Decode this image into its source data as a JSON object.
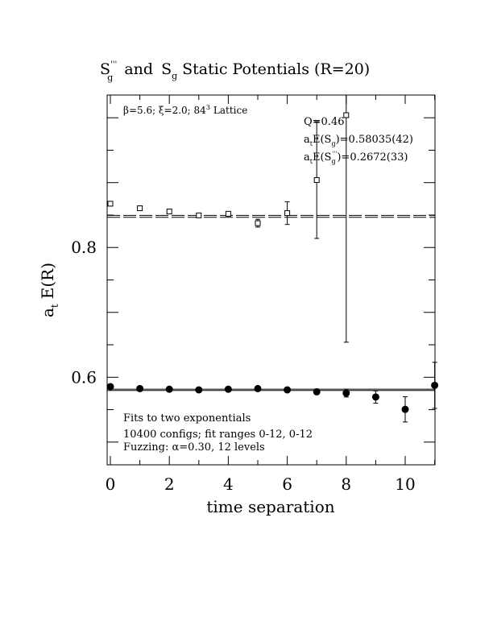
{
  "chart_data": {
    "type": "scatter",
    "title": {
      "s1_base": "S",
      "s1_sub": "g",
      "s1_sup": "'''",
      "and": "and",
      "s2_base": "S",
      "s2_sub": "g",
      "rest": "Static Potentials (R=20)"
    },
    "xlabel": "time separation",
    "ylabel": {
      "base": "a",
      "sub": "t",
      "rest": "E(R)"
    },
    "xlim": [
      0,
      11
    ],
    "ylim": [
      0.465,
      1.035
    ],
    "x_ticks": [
      0,
      2,
      4,
      6,
      8,
      10
    ],
    "y_ticks": [
      0.6,
      0.8
    ],
    "annotations": {
      "top_left": {
        "beta": "β=5.6; ξ=2.0; 84",
        "sup": "3",
        "lattice": "Lattice"
      },
      "fit": {
        "q": "Q=0.46",
        "line2": {
          "a": "a",
          "a_sub": "t",
          "e": "E(S",
          "s_sub": "g",
          "value": ")=0.58035(42)"
        },
        "line3": {
          "a": "a",
          "a_sub": "t",
          "e": "E(S",
          "s_sub": "g",
          "s_sup": "'''",
          "value": ")=0.2672(33)"
        }
      },
      "bottom": [
        "Fits to two exponentials",
        "10400 configs; fit ranges 0-12, 0-12",
        "Fuzzing: α=0.30, 12 levels"
      ]
    },
    "series": [
      {
        "marker": "open-square",
        "points": [
          {
            "x": 0,
            "y": 0.8675,
            "err": 0.002
          },
          {
            "x": 1,
            "y": 0.8605,
            "err": 0.002
          },
          {
            "x": 2,
            "y": 0.8555,
            "err": 0.002
          },
          {
            "x": 3,
            "y": 0.8495,
            "err": 0.003
          },
          {
            "x": 4,
            "y": 0.852,
            "err": 0.003
          },
          {
            "x": 5,
            "y": 0.8375,
            "err": 0.006
          },
          {
            "x": 6,
            "y": 0.853,
            "err": 0.0175
          },
          {
            "x": 7,
            "y": 0.904,
            "err": 0.09
          },
          {
            "x": 8,
            "y": 1.004,
            "err": 0.35
          }
        ],
        "fit_lines": [
          0.8495,
          0.8465
        ]
      },
      {
        "marker": "filled-circle",
        "points": [
          {
            "x": 0,
            "y": 0.5855,
            "err": 0.001
          },
          {
            "x": 1,
            "y": 0.5825,
            "err": 0.001
          },
          {
            "x": 2,
            "y": 0.5815,
            "err": 0.001
          },
          {
            "x": 3,
            "y": 0.5805,
            "err": 0.001
          },
          {
            "x": 4,
            "y": 0.5815,
            "err": 0.001
          },
          {
            "x": 5,
            "y": 0.5825,
            "err": 0.002
          },
          {
            "x": 6,
            "y": 0.5805,
            "err": 0.002
          },
          {
            "x": 7,
            "y": 0.5775,
            "err": 0.003
          },
          {
            "x": 8,
            "y": 0.5755,
            "err": 0.006
          },
          {
            "x": 9,
            "y": 0.5695,
            "err": 0.0095
          },
          {
            "x": 10,
            "y": 0.5505,
            "err": 0.0195
          },
          {
            "x": 11,
            "y": 0.5875,
            "err": 0.0355
          }
        ],
        "fit_lines": [
          0.5815,
          0.5795
        ]
      }
    ]
  }
}
